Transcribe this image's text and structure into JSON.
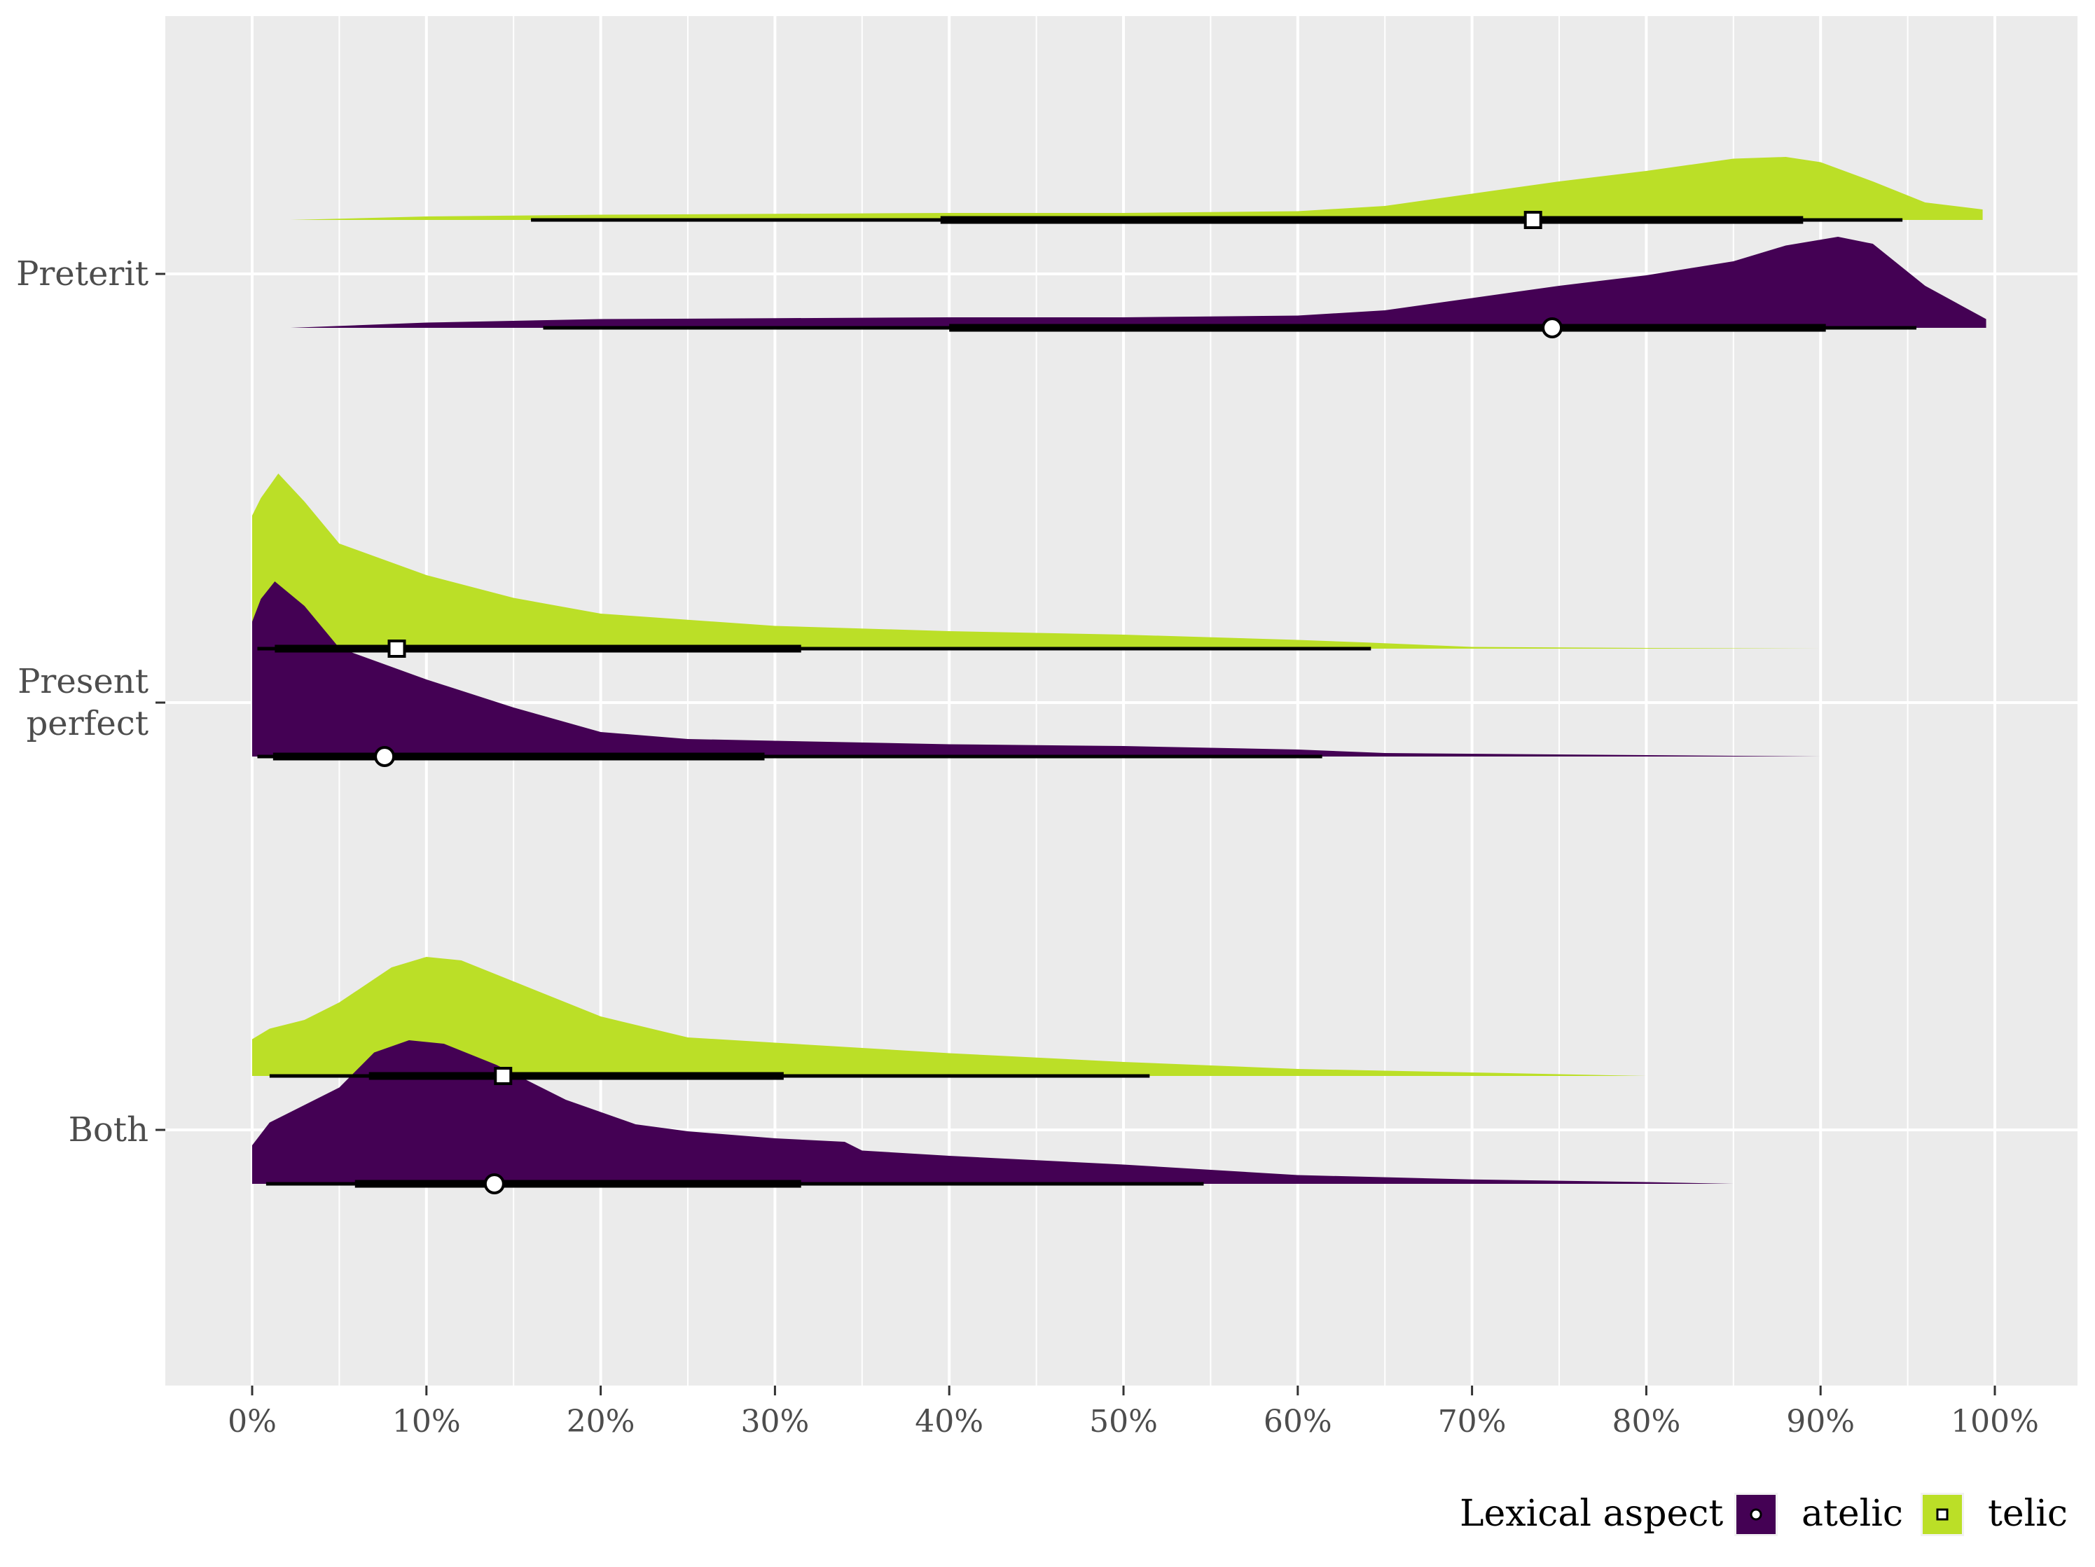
{
  "chart_data": {
    "type": "halfeye",
    "xlim": [
      0,
      100
    ],
    "x_ticks": [
      "0%",
      "10%",
      "20%",
      "30%",
      "40%",
      "50%",
      "60%",
      "70%",
      "80%",
      "90%",
      "100%"
    ],
    "categories": [
      "Preterit",
      "Present perfect",
      "Both"
    ],
    "category_lines": [
      [
        "Preterit"
      ],
      [
        "Present",
        "perfect"
      ],
      [
        "Both"
      ]
    ],
    "grid": true,
    "legend": {
      "title": "Lexical aspect",
      "position": "bottom-right",
      "entries": [
        {
          "label": "atelic",
          "color": "#440154",
          "shape": "circle"
        },
        {
          "label": "telic",
          "color": "#BBDF27",
          "shape": "square"
        }
      ]
    },
    "series": [
      {
        "name": "telic",
        "color": "#BBDF27",
        "shape": "square",
        "groups": [
          {
            "category": "Preterit",
            "point": 73.5,
            "interval_66": [
              39.5,
              89.0
            ],
            "interval_95": [
              16.0,
              94.7
            ],
            "range": [
              2.2,
              99.3
            ],
            "density": [
              [
                2.2,
                0.0
              ],
              [
                10,
                0.02
              ],
              [
                20,
                0.03
              ],
              [
                30,
                0.035
              ],
              [
                40,
                0.04
              ],
              [
                50,
                0.04
              ],
              [
                60,
                0.05
              ],
              [
                65,
                0.08
              ],
              [
                70,
                0.15
              ],
              [
                75,
                0.22
              ],
              [
                80,
                0.28
              ],
              [
                85,
                0.35
              ],
              [
                88,
                0.36
              ],
              [
                90,
                0.33
              ],
              [
                93,
                0.22
              ],
              [
                96,
                0.1
              ],
              [
                99.3,
                0.06
              ]
            ]
          },
          {
            "category": "Present perfect",
            "point": 8.3,
            "interval_66": [
              1.3,
              31.5
            ],
            "interval_95": [
              0.3,
              64.2
            ],
            "range": [
              0,
              90
            ],
            "density": [
              [
                0,
                0.76
              ],
              [
                0.5,
                0.86
              ],
              [
                1.5,
                1.0
              ],
              [
                3,
                0.84
              ],
              [
                5,
                0.6
              ],
              [
                10,
                0.42
              ],
              [
                15,
                0.29
              ],
              [
                20,
                0.2
              ],
              [
                30,
                0.13
              ],
              [
                40,
                0.1
              ],
              [
                50,
                0.08
              ],
              [
                60,
                0.05
              ],
              [
                64,
                0.035
              ],
              [
                70,
                0.01
              ],
              [
                80,
                0.004
              ],
              [
                90,
                0.0
              ]
            ]
          },
          {
            "category": "Both",
            "point": 14.4,
            "interval_66": [
              6.7,
              30.5
            ],
            "interval_95": [
              1.0,
              51.5
            ],
            "range": [
              0,
              80
            ],
            "density": [
              [
                0,
                0.21
              ],
              [
                1,
                0.27
              ],
              [
                3,
                0.32
              ],
              [
                5,
                0.42
              ],
              [
                8,
                0.62
              ],
              [
                10,
                0.68
              ],
              [
                12,
                0.66
              ],
              [
                15,
                0.54
              ],
              [
                18,
                0.42
              ],
              [
                20,
                0.34
              ],
              [
                25,
                0.22
              ],
              [
                30,
                0.19
              ],
              [
                35,
                0.16
              ],
              [
                40,
                0.13
              ],
              [
                50,
                0.08
              ],
              [
                60,
                0.04
              ],
              [
                70,
                0.02
              ],
              [
                80,
                0.0
              ]
            ]
          }
        ]
      },
      {
        "name": "atelic",
        "color": "#440154",
        "shape": "circle",
        "groups": [
          {
            "category": "Preterit",
            "point": 74.6,
            "interval_66": [
              40.0,
              90.3
            ],
            "interval_95": [
              16.7,
              95.5
            ],
            "range": [
              2.2,
              99.5
            ],
            "density": [
              [
                2.2,
                0.0
              ],
              [
                10,
                0.03
              ],
              [
                20,
                0.05
              ],
              [
                30,
                0.055
              ],
              [
                40,
                0.06
              ],
              [
                50,
                0.06
              ],
              [
                60,
                0.07
              ],
              [
                65,
                0.1
              ],
              [
                70,
                0.17
              ],
              [
                75,
                0.24
              ],
              [
                80,
                0.3
              ],
              [
                85,
                0.38
              ],
              [
                88,
                0.47
              ],
              [
                91,
                0.52
              ],
              [
                93,
                0.48
              ],
              [
                96,
                0.24
              ],
              [
                99.5,
                0.05
              ]
            ]
          },
          {
            "category": "Present perfect",
            "point": 7.6,
            "interval_66": [
              1.2,
              29.4
            ],
            "interval_95": [
              0.3,
              61.4
            ],
            "range": [
              0,
              90
            ],
            "density": [
              [
                0,
                0.77
              ],
              [
                0.5,
                0.9
              ],
              [
                1.3,
                1.0
              ],
              [
                3,
                0.86
              ],
              [
                5,
                0.62
              ],
              [
                10,
                0.44
              ],
              [
                15,
                0.28
              ],
              [
                20,
                0.14
              ],
              [
                25,
                0.1
              ],
              [
                30,
                0.09
              ],
              [
                40,
                0.07
              ],
              [
                50,
                0.06
              ],
              [
                60,
                0.04
              ],
              [
                65,
                0.02
              ],
              [
                80,
                0.008
              ],
              [
                90,
                0.0
              ]
            ]
          },
          {
            "category": "Both",
            "point": 13.9,
            "interval_66": [
              5.9,
              31.5
            ],
            "interval_95": [
              0.8,
              54.6
            ],
            "range": [
              0,
              85
            ],
            "density": [
              [
                0,
                0.22
              ],
              [
                1,
                0.35
              ],
              [
                3,
                0.45
              ],
              [
                5,
                0.55
              ],
              [
                7,
                0.75
              ],
              [
                9,
                0.82
              ],
              [
                11,
                0.8
              ],
              [
                14,
                0.68
              ],
              [
                18,
                0.48
              ],
              [
                22,
                0.34
              ],
              [
                25,
                0.3
              ],
              [
                30,
                0.26
              ],
              [
                34,
                0.24
              ],
              [
                35,
                0.19
              ],
              [
                40,
                0.16
              ],
              [
                50,
                0.11
              ],
              [
                60,
                0.05
              ],
              [
                70,
                0.025
              ],
              [
                80,
                0.01
              ],
              [
                85,
                0.0
              ]
            ]
          }
        ]
      }
    ]
  }
}
